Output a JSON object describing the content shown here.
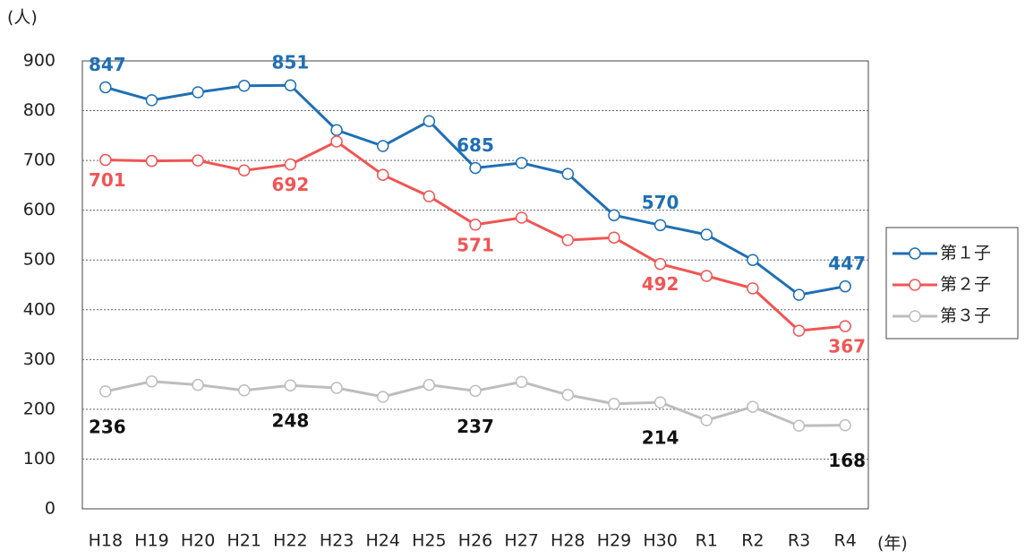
{
  "chart_data": {
    "type": "line",
    "y_unit": "(人)",
    "x_unit": "(年)",
    "categories": [
      "H18",
      "H19",
      "H20",
      "H21",
      "H22",
      "H23",
      "H24",
      "H25",
      "H26",
      "H27",
      "H28",
      "H29",
      "H30",
      "R1",
      "R2",
      "R3",
      "R4"
    ],
    "series": [
      {
        "name": "第１子",
        "color": "#1f6fb4",
        "label_color": "#1f6fb4",
        "values": [
          847,
          821,
          837,
          850,
          851,
          761,
          729,
          779,
          685,
          695,
          673,
          590,
          570,
          551,
          500,
          430,
          447
        ],
        "value_labels": [
          "847",
          null,
          null,
          null,
          "851",
          null,
          null,
          null,
          "685",
          null,
          null,
          null,
          "570",
          null,
          null,
          null,
          "447"
        ]
      },
      {
        "name": "第２子",
        "color": "#f05555",
        "label_color": "#f05555",
        "values": [
          701,
          699,
          700,
          680,
          692,
          738,
          671,
          628,
          571,
          585,
          540,
          545,
          492,
          468,
          443,
          358,
          367
        ],
        "value_labels": [
          "701",
          null,
          null,
          null,
          "692",
          null,
          null,
          null,
          "571",
          null,
          null,
          null,
          "492",
          null,
          null,
          null,
          "367"
        ]
      },
      {
        "name": "第３子",
        "color": "#bdbdbd",
        "label_color": "#111111",
        "values": [
          236,
          256,
          249,
          238,
          248,
          243,
          225,
          249,
          237,
          255,
          229,
          211,
          214,
          178,
          205,
          167,
          168
        ],
        "value_labels": [
          "236",
          null,
          null,
          null,
          "248",
          null,
          null,
          null,
          "237",
          null,
          null,
          null,
          "214",
          null,
          null,
          null,
          "168"
        ]
      }
    ],
    "ylim": [
      0,
      900
    ],
    "yticks": [
      0,
      100,
      200,
      300,
      400,
      500,
      600,
      700,
      800,
      900
    ],
    "grid": true,
    "legend": "right"
  }
}
